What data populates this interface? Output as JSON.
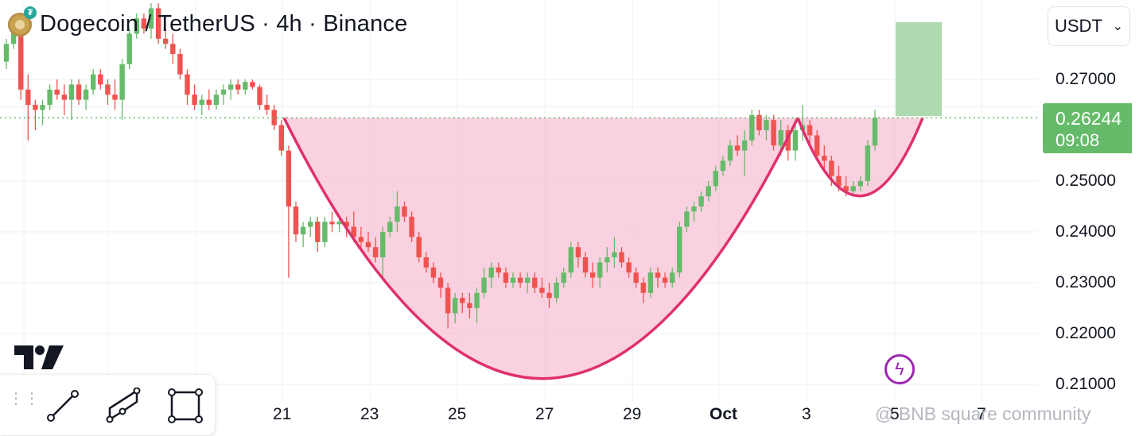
{
  "header": {
    "title": "Dogecoin / TetherUS · 4h · Binance",
    "currency": "USDT"
  },
  "price_tag": {
    "price": "0.26244",
    "countdown": "09:08"
  },
  "watermark": "@ BNB square community",
  "colors": {
    "up": "#66bb6a",
    "down": "#ef5350",
    "pattern": "#e0306b",
    "pattern_fill": "#f7b3cb",
    "target_fill": "#a5d6a7",
    "grid": "#eef0f3"
  },
  "toolbar": {
    "icons": [
      "drag-grip-icon",
      "trend-line-icon",
      "parallel-channel-icon",
      "rectangle-icon"
    ]
  },
  "chart_data": {
    "type": "candlestick",
    "title": "Dogecoin / TetherUS · 4h · Binance",
    "y_ticks": [
      "0.27000",
      "0.25000",
      "0.24000",
      "0.23000",
      "0.22000",
      "0.21000"
    ],
    "y_tick_values": [
      0.27,
      0.25,
      0.24,
      0.23,
      0.22,
      0.21
    ],
    "x_ticks": [
      "21",
      "23",
      "25",
      "27",
      "29",
      "Oct",
      "3",
      "5",
      "7"
    ],
    "ylim": [
      0.2085,
      0.2835
    ],
    "last_price": 0.26244,
    "resistance_level": 0.26244,
    "grid": true,
    "candles": [
      [
        0.2735,
        0.278,
        0.272,
        0.277
      ],
      [
        0.277,
        0.281,
        0.276,
        0.28
      ],
      [
        0.28,
        0.2805,
        0.266,
        0.268
      ],
      [
        0.268,
        0.271,
        0.258,
        0.265
      ],
      [
        0.265,
        0.266,
        0.26,
        0.264
      ],
      [
        0.264,
        0.266,
        0.261,
        0.265
      ],
      [
        0.265,
        0.269,
        0.264,
        0.268
      ],
      [
        0.268,
        0.27,
        0.266,
        0.267
      ],
      [
        0.267,
        0.269,
        0.263,
        0.266
      ],
      [
        0.266,
        0.27,
        0.262,
        0.269
      ],
      [
        0.269,
        0.27,
        0.265,
        0.266
      ],
      [
        0.266,
        0.269,
        0.264,
        0.268
      ],
      [
        0.268,
        0.272,
        0.267,
        0.271
      ],
      [
        0.271,
        0.272,
        0.268,
        0.269
      ],
      [
        0.269,
        0.27,
        0.265,
        0.267
      ],
      [
        0.267,
        0.27,
        0.264,
        0.266
      ],
      [
        0.266,
        0.274,
        0.262,
        0.273
      ],
      [
        0.273,
        0.28,
        0.272,
        0.279
      ],
      [
        0.279,
        0.283,
        0.278,
        0.282
      ],
      [
        0.282,
        0.283,
        0.279,
        0.28
      ],
      [
        0.28,
        0.285,
        0.278,
        0.284
      ],
      [
        0.284,
        0.285,
        0.277,
        0.278
      ],
      [
        0.278,
        0.28,
        0.276,
        0.277
      ],
      [
        0.277,
        0.279,
        0.273,
        0.275
      ],
      [
        0.275,
        0.276,
        0.27,
        0.271
      ],
      [
        0.271,
        0.272,
        0.265,
        0.267
      ],
      [
        0.267,
        0.269,
        0.264,
        0.265
      ],
      [
        0.265,
        0.267,
        0.263,
        0.266
      ],
      [
        0.266,
        0.268,
        0.264,
        0.265
      ],
      [
        0.265,
        0.268,
        0.264,
        0.267
      ],
      [
        0.267,
        0.269,
        0.265,
        0.268
      ],
      [
        0.268,
        0.27,
        0.266,
        0.269
      ],
      [
        0.269,
        0.27,
        0.267,
        0.268
      ],
      [
        0.268,
        0.27,
        0.267,
        0.2695
      ],
      [
        0.2695,
        0.27,
        0.268,
        0.2685
      ],
      [
        0.2685,
        0.269,
        0.264,
        0.265
      ],
      [
        0.265,
        0.267,
        0.263,
        0.264
      ],
      [
        0.264,
        0.265,
        0.26,
        0.261
      ],
      [
        0.261,
        0.262,
        0.255,
        0.256
      ],
      [
        0.256,
        0.257,
        0.231,
        0.245
      ],
      [
        0.245,
        0.246,
        0.238,
        0.2395
      ],
      [
        0.2395,
        0.242,
        0.237,
        0.241
      ],
      [
        0.241,
        0.243,
        0.239,
        0.242
      ],
      [
        0.242,
        0.243,
        0.236,
        0.238
      ],
      [
        0.238,
        0.243,
        0.237,
        0.242
      ],
      [
        0.242,
        0.244,
        0.24,
        0.2415
      ],
      [
        0.2415,
        0.243,
        0.24,
        0.242
      ],
      [
        0.242,
        0.243,
        0.239,
        0.241
      ],
      [
        0.241,
        0.244,
        0.238,
        0.239
      ],
      [
        0.239,
        0.241,
        0.237,
        0.238
      ],
      [
        0.238,
        0.24,
        0.236,
        0.237
      ],
      [
        0.237,
        0.239,
        0.234,
        0.235
      ],
      [
        0.235,
        0.241,
        0.231,
        0.24
      ],
      [
        0.24,
        0.243,
        0.239,
        0.242
      ],
      [
        0.242,
        0.248,
        0.24,
        0.245
      ],
      [
        0.245,
        0.246,
        0.242,
        0.243
      ],
      [
        0.243,
        0.244,
        0.238,
        0.239
      ],
      [
        0.239,
        0.24,
        0.234,
        0.235
      ],
      [
        0.235,
        0.236,
        0.232,
        0.233
      ],
      [
        0.233,
        0.234,
        0.23,
        0.231
      ],
      [
        0.231,
        0.232,
        0.227,
        0.229
      ],
      [
        0.229,
        0.23,
        0.221,
        0.224
      ],
      [
        0.224,
        0.228,
        0.222,
        0.227
      ],
      [
        0.227,
        0.228,
        0.224,
        0.226
      ],
      [
        0.226,
        0.228,
        0.223,
        0.225
      ],
      [
        0.225,
        0.229,
        0.222,
        0.228
      ],
      [
        0.228,
        0.233,
        0.227,
        0.231
      ],
      [
        0.231,
        0.234,
        0.229,
        0.233
      ],
      [
        0.233,
        0.234,
        0.231,
        0.232
      ],
      [
        0.232,
        0.233,
        0.229,
        0.23
      ],
      [
        0.23,
        0.232,
        0.229,
        0.231
      ],
      [
        0.231,
        0.232,
        0.229,
        0.23
      ],
      [
        0.23,
        0.232,
        0.228,
        0.231
      ],
      [
        0.231,
        0.232,
        0.228,
        0.229
      ],
      [
        0.229,
        0.231,
        0.227,
        0.228
      ],
      [
        0.228,
        0.23,
        0.225,
        0.227
      ],
      [
        0.227,
        0.231,
        0.226,
        0.23
      ],
      [
        0.23,
        0.233,
        0.229,
        0.232
      ],
      [
        0.232,
        0.238,
        0.231,
        0.237
      ],
      [
        0.237,
        0.238,
        0.233,
        0.235
      ],
      [
        0.235,
        0.236,
        0.231,
        0.232
      ],
      [
        0.232,
        0.234,
        0.229,
        0.231
      ],
      [
        0.231,
        0.235,
        0.229,
        0.234
      ],
      [
        0.234,
        0.237,
        0.232,
        0.235
      ],
      [
        0.235,
        0.239,
        0.233,
        0.236
      ],
      [
        0.236,
        0.237,
        0.233,
        0.234
      ],
      [
        0.234,
        0.235,
        0.231,
        0.232
      ],
      [
        0.232,
        0.233,
        0.229,
        0.23
      ],
      [
        0.23,
        0.231,
        0.226,
        0.228
      ],
      [
        0.228,
        0.233,
        0.227,
        0.232
      ],
      [
        0.232,
        0.233,
        0.229,
        0.231
      ],
      [
        0.231,
        0.232,
        0.229,
        0.23
      ],
      [
        0.23,
        0.233,
        0.229,
        0.232
      ],
      [
        0.232,
        0.242,
        0.231,
        0.241
      ],
      [
        0.241,
        0.245,
        0.24,
        0.244
      ],
      [
        0.244,
        0.246,
        0.242,
        0.245
      ],
      [
        0.245,
        0.248,
        0.244,
        0.247
      ],
      [
        0.247,
        0.25,
        0.246,
        0.249
      ],
      [
        0.249,
        0.253,
        0.248,
        0.252
      ],
      [
        0.252,
        0.255,
        0.251,
        0.254
      ],
      [
        0.254,
        0.258,
        0.253,
        0.257
      ],
      [
        0.257,
        0.259,
        0.255,
        0.256
      ],
      [
        0.256,
        0.26,
        0.251,
        0.258
      ],
      [
        0.258,
        0.264,
        0.257,
        0.263
      ],
      [
        0.263,
        0.264,
        0.259,
        0.26
      ],
      [
        0.26,
        0.263,
        0.258,
        0.262
      ],
      [
        0.262,
        0.263,
        0.256,
        0.257
      ],
      [
        0.257,
        0.262,
        0.255,
        0.26
      ],
      [
        0.26,
        0.261,
        0.254,
        0.256
      ],
      [
        0.256,
        0.261,
        0.254,
        0.26
      ],
      [
        0.26,
        0.265,
        0.258,
        0.261
      ],
      [
        0.261,
        0.262,
        0.257,
        0.259
      ],
      [
        0.259,
        0.26,
        0.254,
        0.255
      ],
      [
        0.255,
        0.257,
        0.252,
        0.254
      ],
      [
        0.254,
        0.255,
        0.249,
        0.251
      ],
      [
        0.251,
        0.253,
        0.248,
        0.249
      ],
      [
        0.249,
        0.251,
        0.247,
        0.248
      ],
      [
        0.248,
        0.25,
        0.247,
        0.249
      ],
      [
        0.249,
        0.251,
        0.248,
        0.25
      ],
      [
        0.25,
        0.258,
        0.249,
        0.257
      ],
      [
        0.257,
        0.264,
        0.256,
        0.26244
      ]
    ]
  }
}
